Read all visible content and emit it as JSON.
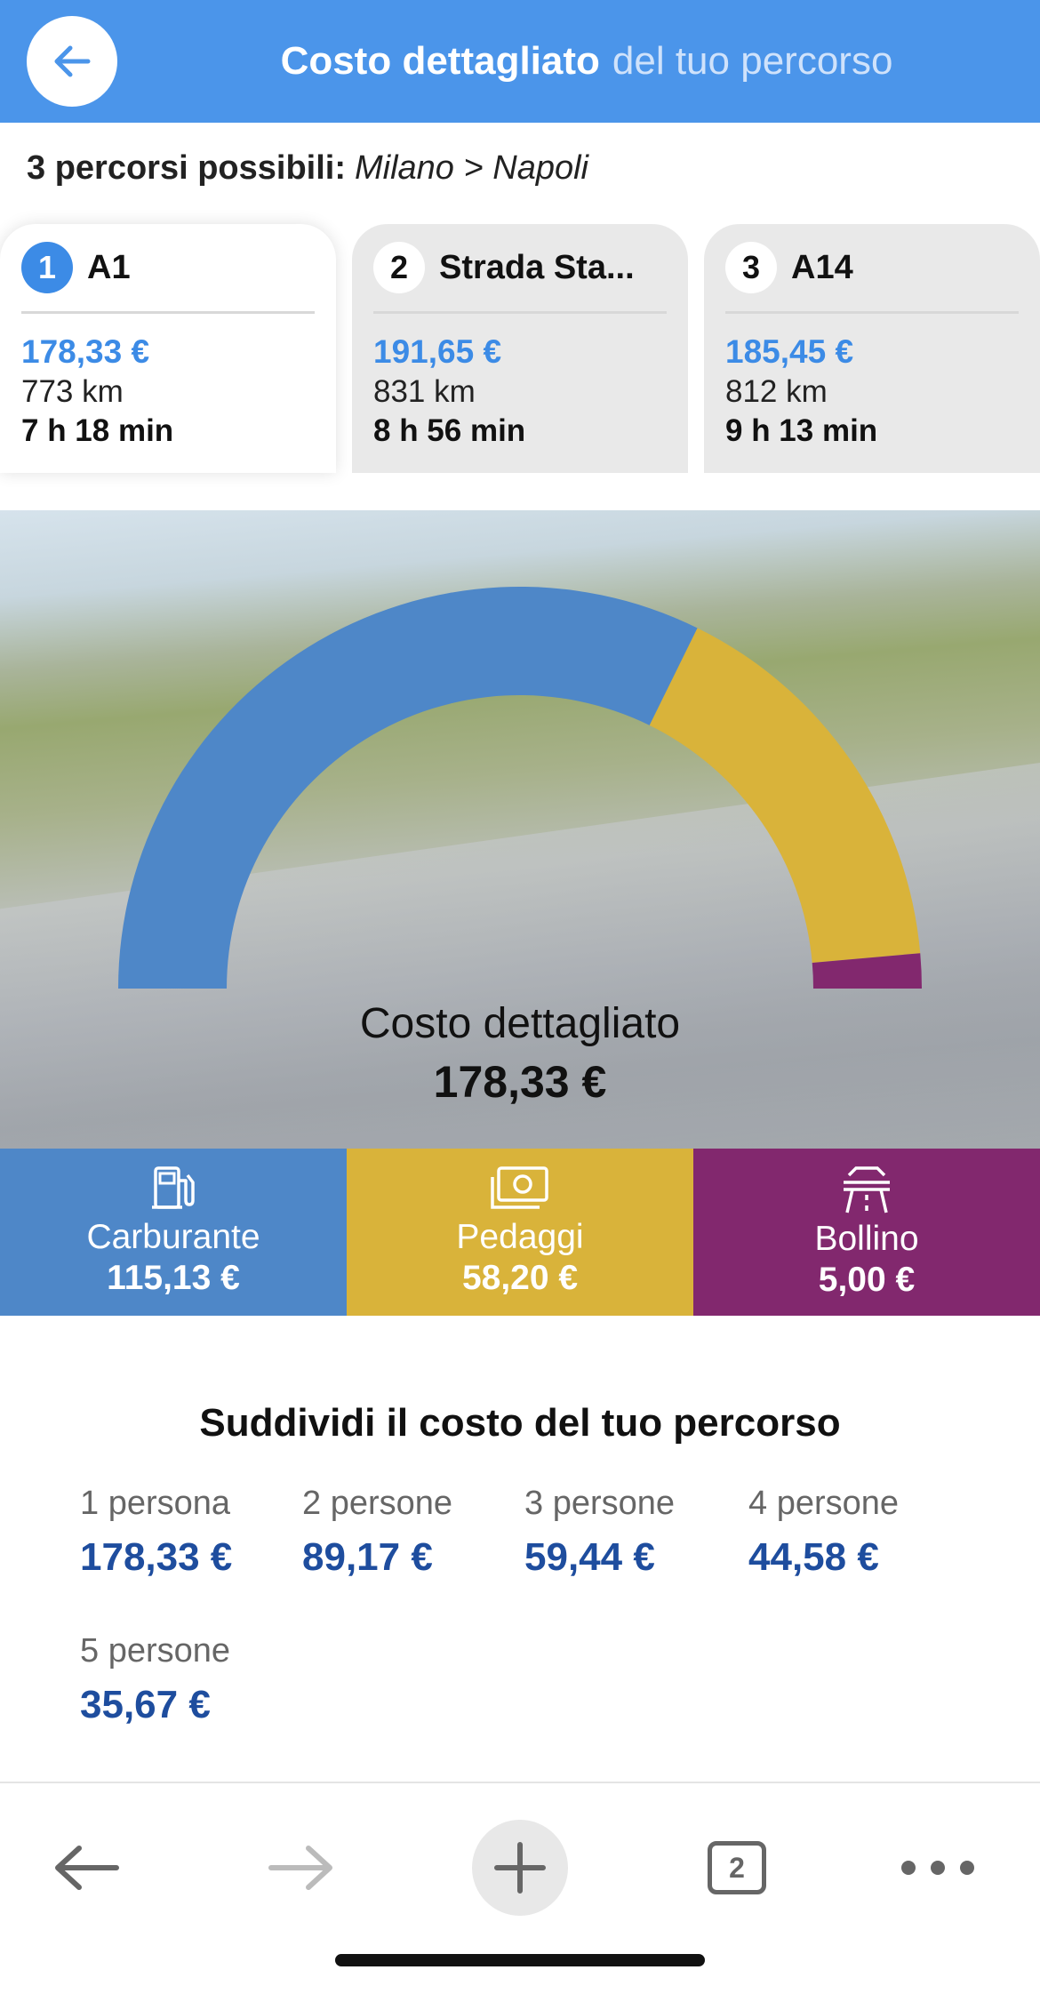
{
  "header": {
    "title_bold": "Costo dettagliato",
    "title_light": "del tuo percorso",
    "back_icon": "arrow-left-icon"
  },
  "subtitle": {
    "count_label": "3 percorsi possibili:",
    "route": "Milano > Napoli"
  },
  "routes": [
    {
      "num": "1",
      "name": "A1",
      "price": "178,33 €",
      "distance": "773 km",
      "duration": "7 h 18 min",
      "active": true
    },
    {
      "num": "2",
      "name": "Strada Sta...",
      "price": "191,65 €",
      "distance": "831 km",
      "duration": "8 h 56 min",
      "active": false
    },
    {
      "num": "3",
      "name": "A14",
      "price": "185,45 €",
      "distance": "812 km",
      "duration": "9 h 13 min",
      "active": false
    }
  ],
  "chart_data": {
    "type": "pie",
    "style": "semi-donut",
    "categories": [
      "Carburante",
      "Pedaggi",
      "Bollino"
    ],
    "values": [
      115.13,
      58.2,
      5.0
    ],
    "colors": [
      "#4e87c8",
      "#d9b33a",
      "#82286e"
    ],
    "caption": "Costo dettagliato",
    "total": "178,33 €"
  },
  "costs": [
    {
      "label": "Carburante",
      "value": "115,13 €",
      "color": "#4e87c8",
      "icon": "fuel-pump-icon"
    },
    {
      "label": "Pedaggi",
      "value": "58,20 €",
      "color": "#d9b33a",
      "icon": "cash-icon"
    },
    {
      "label": "Bollino",
      "value": "5,00 €",
      "color": "#82286e",
      "icon": "highway-icon"
    }
  ],
  "split": {
    "title": "Suddividi il costo del tuo percorso",
    "items": [
      {
        "label": "1 persona",
        "value": "178,33 €"
      },
      {
        "label": "2 persone",
        "value": "89,17 €"
      },
      {
        "label": "3 persone",
        "value": "59,44 €"
      },
      {
        "label": "4 persone",
        "value": "44,58 €"
      },
      {
        "label": "5 persone",
        "value": "35,67 €"
      }
    ]
  },
  "browser": {
    "tab_count": "2",
    "icons": [
      "back-arrow-icon",
      "forward-arrow-icon",
      "plus-icon",
      "tabs-icon",
      "more-icon"
    ]
  }
}
